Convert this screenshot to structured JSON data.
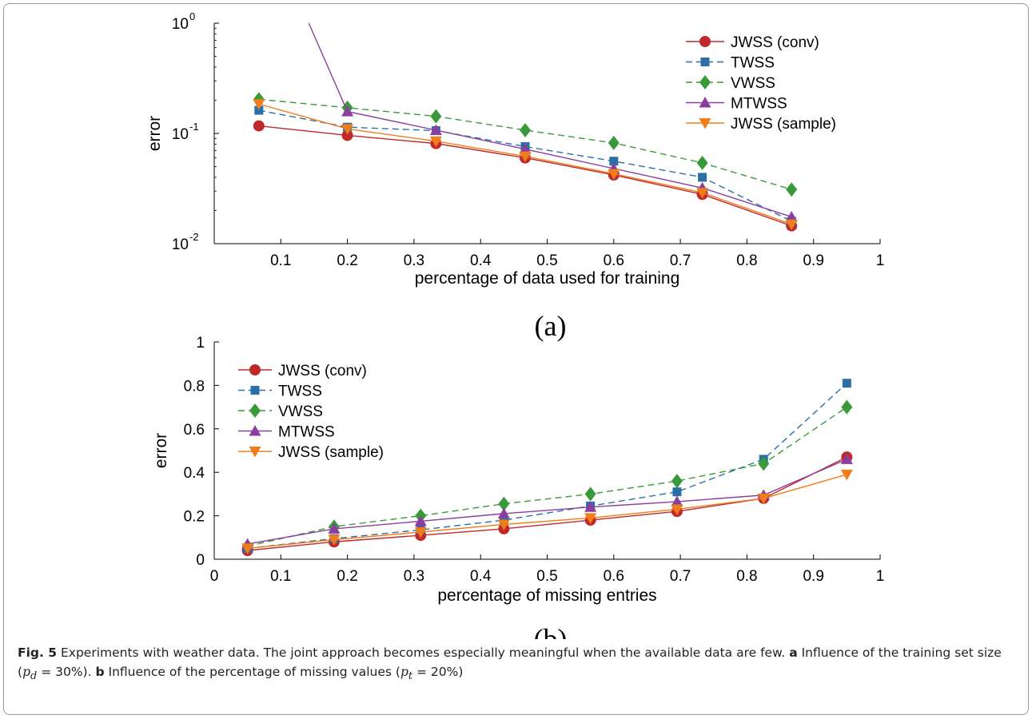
{
  "colors": {
    "jwss_conv": "#c0282a",
    "twss": "#2a6fa8",
    "vwss": "#3a9a3a",
    "mtwss": "#8a3f9e",
    "jwss_sample": "#f07d1a"
  },
  "chart_data": [
    {
      "type": "line",
      "panel_label": "(a)",
      "xlabel": "percentage of data used for training",
      "ylabel": "error",
      "yscale": "log",
      "xlim": [
        0,
        1
      ],
      "ylim": [
        0.01,
        1
      ],
      "xticks": [
        "0.1",
        "0.2",
        "0.3",
        "0.4",
        "0.5",
        "0.6",
        "0.7",
        "0.8",
        "0.9",
        "1"
      ],
      "ytick_values": [
        0.01,
        0.1,
        1
      ],
      "ytick_labels": [
        {
          "base": "10",
          "exp": "-2"
        },
        {
          "base": "10",
          "exp": "-1"
        },
        {
          "base": "10",
          "exp": "0"
        }
      ],
      "legend_position": "top-right",
      "series": [
        {
          "name": "JWSS (conv)",
          "marker": "circle",
          "dash": "solid",
          "color_key": "jwss_conv",
          "x": [
            0.067,
            0.2,
            0.333,
            0.467,
            0.6,
            0.733,
            0.867
          ],
          "y": [
            0.117,
            0.096,
            0.081,
            0.06,
            0.042,
            0.028,
            0.0145
          ]
        },
        {
          "name": "TWSS",
          "marker": "square",
          "dash": "dashed",
          "color_key": "twss",
          "x": [
            0.067,
            0.2,
            0.333,
            0.467,
            0.6,
            0.733,
            0.867
          ],
          "y": [
            0.162,
            0.114,
            0.106,
            0.076,
            0.056,
            0.04,
            0.016
          ]
        },
        {
          "name": "VWSS",
          "marker": "diamond",
          "dash": "dashed",
          "color_key": "vwss",
          "x": [
            0.067,
            0.2,
            0.333,
            0.467,
            0.6,
            0.733,
            0.867
          ],
          "y": [
            0.204,
            0.171,
            0.143,
            0.107,
            0.082,
            0.054,
            0.031
          ]
        },
        {
          "name": "MTWSS",
          "marker": "triangle-up",
          "dash": "solid",
          "color_key": "mtwss",
          "x": [
            0.142,
            0.2,
            0.333,
            0.467,
            0.6,
            0.733,
            0.867
          ],
          "y": [
            1.0,
            0.158,
            0.107,
            0.072,
            0.048,
            0.032,
            0.0175
          ],
          "markers_from_index": 1
        },
        {
          "name": "JWSS (sample)",
          "marker": "triangle-down",
          "dash": "solid",
          "color_key": "jwss_sample",
          "x": [
            0.067,
            0.2,
            0.333,
            0.467,
            0.6,
            0.733,
            0.867
          ],
          "y": [
            0.185,
            0.11,
            0.085,
            0.062,
            0.043,
            0.029,
            0.015
          ]
        }
      ]
    },
    {
      "type": "line",
      "panel_label": "(b)",
      "xlabel": "percentage of missing entries",
      "ylabel": "error",
      "yscale": "linear",
      "xlim": [
        0,
        1
      ],
      "ylim": [
        0,
        1
      ],
      "xticks": [
        "0",
        "0.1",
        "0.2",
        "0.3",
        "0.4",
        "0.5",
        "0.6",
        "0.7",
        "0.8",
        "0.9",
        "1"
      ],
      "yticks": [
        "0",
        "0.2",
        "0.4",
        "0.6",
        "0.8",
        "1"
      ],
      "legend_position": "top-left",
      "series": [
        {
          "name": "JWSS (conv)",
          "marker": "circle",
          "dash": "solid",
          "color_key": "jwss_conv",
          "x": [
            0.05,
            0.18,
            0.31,
            0.435,
            0.565,
            0.695,
            0.825,
            0.95
          ],
          "y": [
            0.04,
            0.08,
            0.11,
            0.14,
            0.18,
            0.22,
            0.28,
            0.47
          ]
        },
        {
          "name": "TWSS",
          "marker": "square",
          "dash": "dashed",
          "color_key": "twss",
          "x": [
            0.05,
            0.18,
            0.31,
            0.435,
            0.565,
            0.695,
            0.825,
            0.95
          ],
          "y": [
            0.05,
            0.095,
            0.135,
            0.18,
            0.245,
            0.31,
            0.46,
            0.81
          ]
        },
        {
          "name": "VWSS",
          "marker": "diamond",
          "dash": "dashed",
          "color_key": "vwss",
          "x": [
            0.05,
            0.18,
            0.31,
            0.435,
            0.565,
            0.695,
            0.825,
            0.95
          ],
          "y": [
            0.06,
            0.15,
            0.2,
            0.255,
            0.3,
            0.36,
            0.44,
            0.7
          ]
        },
        {
          "name": "MTWSS",
          "marker": "triangle-up",
          "dash": "solid",
          "color_key": "mtwss",
          "x": [
            0.05,
            0.18,
            0.31,
            0.435,
            0.565,
            0.695,
            0.825,
            0.95
          ],
          "y": [
            0.07,
            0.14,
            0.175,
            0.21,
            0.24,
            0.265,
            0.295,
            0.46
          ]
        },
        {
          "name": "JWSS (sample)",
          "marker": "triangle-down",
          "dash": "solid",
          "color_key": "jwss_sample",
          "x": [
            0.05,
            0.18,
            0.31,
            0.435,
            0.565,
            0.695,
            0.825,
            0.95
          ],
          "y": [
            0.05,
            0.09,
            0.125,
            0.16,
            0.19,
            0.23,
            0.28,
            0.39
          ]
        }
      ]
    }
  ],
  "caption": {
    "fig_label": "Fig. 5",
    "text_1": " Experiments with weather data. The joint approach becomes especially meaningful when the available data are few. ",
    "label_a": "a",
    "text_2": " Influence of the training set size (",
    "var_a": "p",
    "sub_a": "d",
    "eq_a": " = 30%). ",
    "label_b": "b",
    "text_3": " Influence of the percentage of missing values (",
    "var_b": "p",
    "sub_b": "t",
    "eq_b": " = 20%)"
  }
}
